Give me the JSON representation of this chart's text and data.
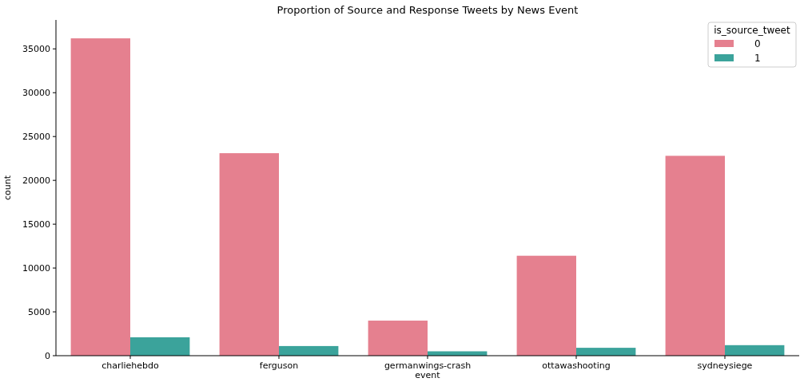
{
  "chart_data": {
    "type": "bar",
    "title": "Proportion of Source and Response Tweets by News Event",
    "xlabel": "event",
    "ylabel": "count",
    "legend_title": "is_source_tweet",
    "legend": "top right",
    "categories": [
      "charliehebdo",
      "ferguson",
      "germanwings-crash",
      "ottawashooting",
      "sydneysiege"
    ],
    "series": [
      {
        "name": "0",
        "color": "#e5808f",
        "values": [
          36200,
          23100,
          4000,
          11400,
          22800
        ]
      },
      {
        "name": "1",
        "color": "#3ba39b",
        "values": [
          2100,
          1100,
          500,
          900,
          1200
        ]
      }
    ],
    "ylim": [
      0,
      38300
    ],
    "yticks": [
      0,
      5000,
      10000,
      15000,
      20000,
      25000,
      30000,
      35000
    ]
  }
}
